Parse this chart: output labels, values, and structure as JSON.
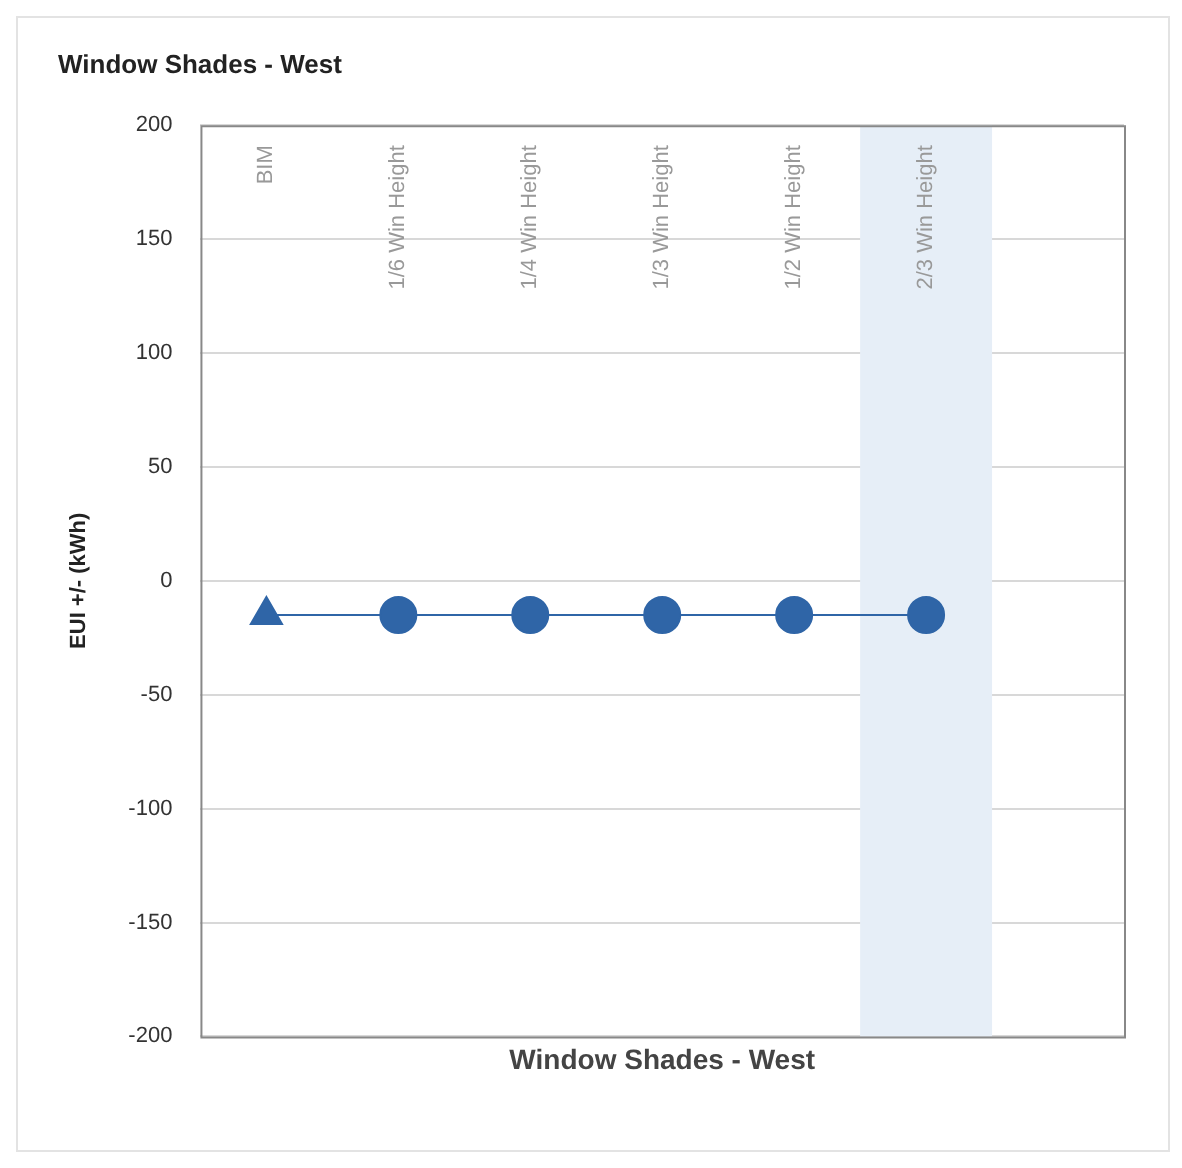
{
  "chart_data": {
    "type": "line",
    "title": "Window Shades - West",
    "xlabel": "Window Shades - West",
    "ylabel": "EUI +/- (kWh)",
    "categories": [
      "BIM",
      "1/6 Win Height",
      "1/4 Win Height",
      "1/3 Win Height",
      "1/2 Win Height",
      "2/3 Win Height",
      null
    ],
    "series": [
      {
        "color": "#2f65a7",
        "values": [
          -15,
          -15,
          -15,
          -15,
          -15,
          -15,
          null
        ],
        "marker": [
          "triangle",
          "circle",
          "circle",
          "circle",
          "circle",
          "circle",
          "circle"
        ]
      }
    ],
    "ylim": [
      -200,
      200
    ],
    "yticks": [
      -200,
      -150,
      -100,
      -50,
      0,
      50,
      100,
      150,
      200
    ],
    "grid": "y",
    "legend": false,
    "line_style": "solid",
    "bands": [
      {
        "axis": "x",
        "from": "2/3 Win Height",
        "to": "2/3 Win Height",
        "color": "#e6eef7"
      }
    ]
  }
}
